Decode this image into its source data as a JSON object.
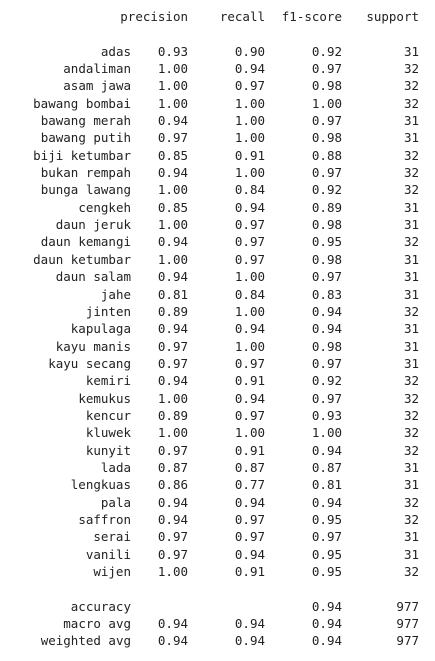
{
  "header": {
    "precision": "precision",
    "recall": "recall",
    "f1": "f1-score",
    "support": "support"
  },
  "rows": [
    {
      "label": "adas",
      "precision": "0.93",
      "recall": "0.90",
      "f1": "0.92",
      "support": "31"
    },
    {
      "label": "andaliman",
      "precision": "1.00",
      "recall": "0.94",
      "f1": "0.97",
      "support": "32"
    },
    {
      "label": "asam jawa",
      "precision": "1.00",
      "recall": "0.97",
      "f1": "0.98",
      "support": "32"
    },
    {
      "label": "bawang bombai",
      "precision": "1.00",
      "recall": "1.00",
      "f1": "1.00",
      "support": "32"
    },
    {
      "label": "bawang merah",
      "precision": "0.94",
      "recall": "1.00",
      "f1": "0.97",
      "support": "31"
    },
    {
      "label": "bawang putih",
      "precision": "0.97",
      "recall": "1.00",
      "f1": "0.98",
      "support": "31"
    },
    {
      "label": "biji ketumbar",
      "precision": "0.85",
      "recall": "0.91",
      "f1": "0.88",
      "support": "32"
    },
    {
      "label": "bukan rempah",
      "precision": "0.94",
      "recall": "1.00",
      "f1": "0.97",
      "support": "32"
    },
    {
      "label": "bunga lawang",
      "precision": "1.00",
      "recall": "0.84",
      "f1": "0.92",
      "support": "32"
    },
    {
      "label": "cengkeh",
      "precision": "0.85",
      "recall": "0.94",
      "f1": "0.89",
      "support": "31"
    },
    {
      "label": "daun jeruk",
      "precision": "1.00",
      "recall": "0.97",
      "f1": "0.98",
      "support": "31"
    },
    {
      "label": "daun kemangi",
      "precision": "0.94",
      "recall": "0.97",
      "f1": "0.95",
      "support": "32"
    },
    {
      "label": "daun ketumbar",
      "precision": "1.00",
      "recall": "0.97",
      "f1": "0.98",
      "support": "31"
    },
    {
      "label": "daun salam",
      "precision": "0.94",
      "recall": "1.00",
      "f1": "0.97",
      "support": "31"
    },
    {
      "label": "jahe",
      "precision": "0.81",
      "recall": "0.84",
      "f1": "0.83",
      "support": "31"
    },
    {
      "label": "jinten",
      "precision": "0.89",
      "recall": "1.00",
      "f1": "0.94",
      "support": "32"
    },
    {
      "label": "kapulaga",
      "precision": "0.94",
      "recall": "0.94",
      "f1": "0.94",
      "support": "31"
    },
    {
      "label": "kayu manis",
      "precision": "0.97",
      "recall": "1.00",
      "f1": "0.98",
      "support": "31"
    },
    {
      "label": "kayu secang",
      "precision": "0.97",
      "recall": "0.97",
      "f1": "0.97",
      "support": "31"
    },
    {
      "label": "kemiri",
      "precision": "0.94",
      "recall": "0.91",
      "f1": "0.92",
      "support": "32"
    },
    {
      "label": "kemukus",
      "precision": "1.00",
      "recall": "0.94",
      "f1": "0.97",
      "support": "32"
    },
    {
      "label": "kencur",
      "precision": "0.89",
      "recall": "0.97",
      "f1": "0.93",
      "support": "32"
    },
    {
      "label": "kluwek",
      "precision": "1.00",
      "recall": "1.00",
      "f1": "1.00",
      "support": "32"
    },
    {
      "label": "kunyit",
      "precision": "0.97",
      "recall": "0.91",
      "f1": "0.94",
      "support": "32"
    },
    {
      "label": "lada",
      "precision": "0.87",
      "recall": "0.87",
      "f1": "0.87",
      "support": "31"
    },
    {
      "label": "lengkuas",
      "precision": "0.86",
      "recall": "0.77",
      "f1": "0.81",
      "support": "31"
    },
    {
      "label": "pala",
      "precision": "0.94",
      "recall": "0.94",
      "f1": "0.94",
      "support": "32"
    },
    {
      "label": "saffron",
      "precision": "0.94",
      "recall": "0.97",
      "f1": "0.95",
      "support": "32"
    },
    {
      "label": "serai",
      "precision": "0.97",
      "recall": "0.97",
      "f1": "0.97",
      "support": "31"
    },
    {
      "label": "vanili",
      "precision": "0.97",
      "recall": "0.94",
      "f1": "0.95",
      "support": "31"
    },
    {
      "label": "wijen",
      "precision": "1.00",
      "recall": "0.91",
      "f1": "0.95",
      "support": "32"
    }
  ],
  "summary": [
    {
      "label": "accuracy",
      "precision": "",
      "recall": "",
      "f1": "0.94",
      "support": "977"
    },
    {
      "label": "macro avg",
      "precision": "0.94",
      "recall": "0.94",
      "f1": "0.94",
      "support": "977"
    },
    {
      "label": "weighted avg",
      "precision": "0.94",
      "recall": "0.94",
      "f1": "0.94",
      "support": "977"
    }
  ]
}
